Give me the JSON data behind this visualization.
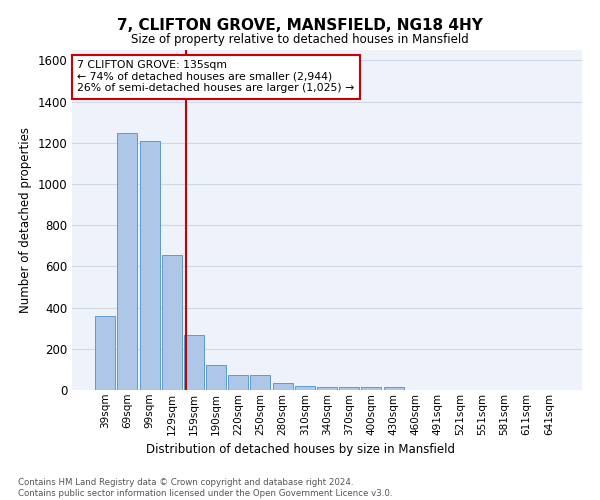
{
  "title": "7, CLIFTON GROVE, MANSFIELD, NG18 4HY",
  "subtitle": "Size of property relative to detached houses in Mansfield",
  "xlabel": "Distribution of detached houses by size in Mansfield",
  "ylabel": "Number of detached properties",
  "footnote": "Contains HM Land Registry data © Crown copyright and database right 2024.\nContains public sector information licensed under the Open Government Licence v3.0.",
  "bar_labels": [
    "39sqm",
    "69sqm",
    "99sqm",
    "129sqm",
    "159sqm",
    "190sqm",
    "220sqm",
    "250sqm",
    "280sqm",
    "310sqm",
    "340sqm",
    "370sqm",
    "400sqm",
    "430sqm",
    "460sqm",
    "491sqm",
    "521sqm",
    "551sqm",
    "581sqm",
    "611sqm",
    "641sqm"
  ],
  "bar_values": [
    360,
    1245,
    1210,
    655,
    265,
    120,
    72,
    72,
    35,
    20,
    14,
    14,
    14,
    14,
    0,
    0,
    0,
    0,
    0,
    0,
    0
  ],
  "bar_color": "#aec6e8",
  "bar_edge_color": "#5b9bd5",
  "grid_color": "#d0d8e8",
  "background_color": "#eef2fa",
  "ylim": [
    0,
    1650
  ],
  "yticks": [
    0,
    200,
    400,
    600,
    800,
    1000,
    1200,
    1400,
    1600
  ],
  "red_line_x": 3.65,
  "annotation_text": "7 CLIFTON GROVE: 135sqm\n← 74% of detached houses are smaller (2,944)\n26% of semi-detached houses are larger (1,025) →",
  "annotation_box_color": "#ffffff",
  "annotation_border_color": "#cc0000",
  "red_line_color": "#cc0000"
}
